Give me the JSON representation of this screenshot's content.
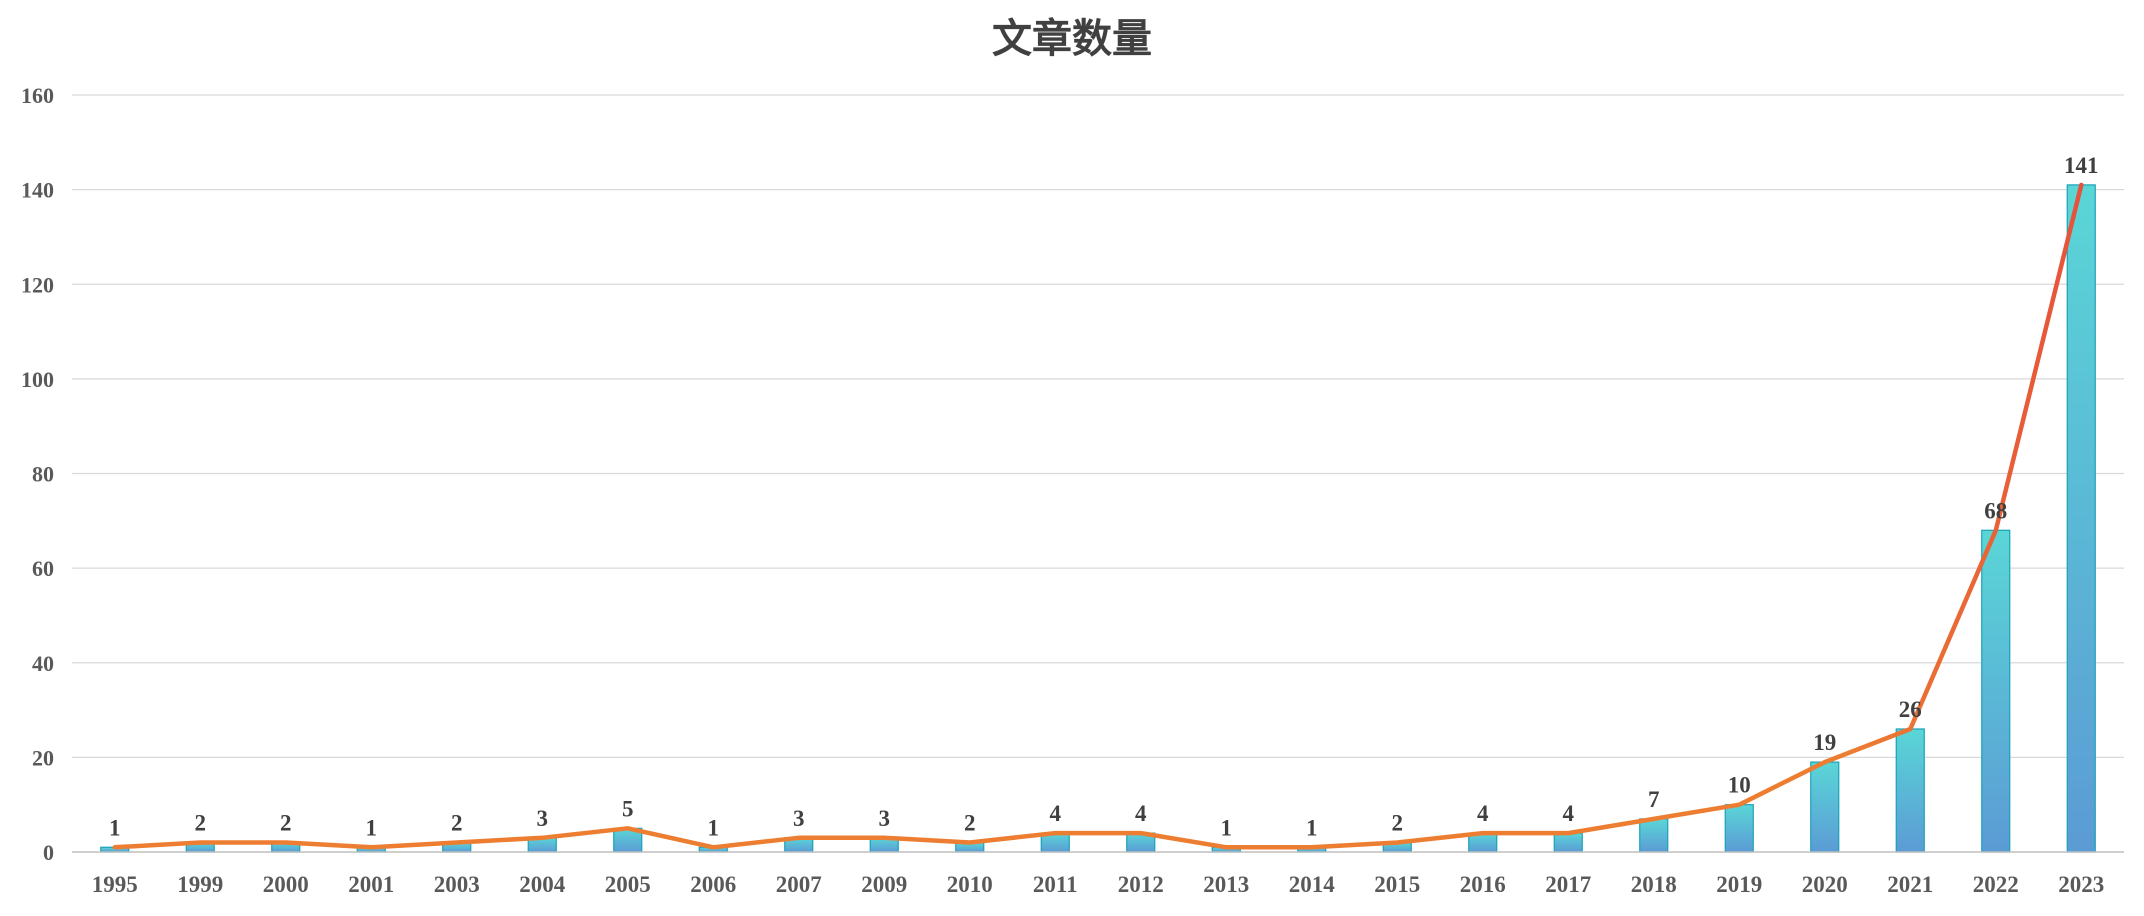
{
  "chart_data": {
    "type": "bar",
    "title": "文章数量",
    "categories": [
      "1995",
      "1999",
      "2000",
      "2001",
      "2003",
      "2004",
      "2005",
      "2006",
      "2007",
      "2009",
      "2010",
      "2011",
      "2012",
      "2013",
      "2014",
      "2015",
      "2016",
      "2017",
      "2018",
      "2019",
      "2020",
      "2021",
      "2022",
      "2023"
    ],
    "series": [
      {
        "values": [
          1,
          2,
          2,
          1,
          2,
          3,
          5,
          1,
          3,
          3,
          2,
          4,
          4,
          1,
          1,
          2,
          4,
          4,
          7,
          10,
          19,
          26,
          68,
          141
        ]
      }
    ],
    "overlay_line": true,
    "ylim": [
      0,
      160
    ],
    "yticks": [
      0,
      20,
      40,
      60,
      80,
      100,
      120,
      140,
      160
    ],
    "grid": true,
    "xlabel": "",
    "ylabel": "",
    "colors": {
      "bar_top": "#5ad6d6",
      "bar_bottom": "#5b9bd5",
      "line": "#ed7d31",
      "line_end": "#e6503c"
    }
  }
}
